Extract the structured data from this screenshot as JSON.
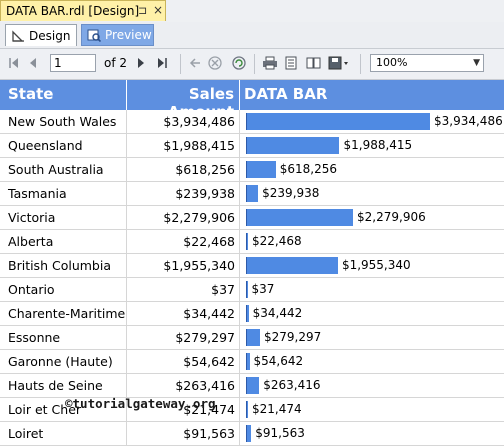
{
  "title_tab": {
    "label": "DATA BAR.rdl [Design]",
    "pin": "⊐",
    "close": "×"
  },
  "subtabs": [
    {
      "label": "Design"
    },
    {
      "label": "Preview"
    }
  ],
  "toolbar": {
    "page_value": "1",
    "page_of": "of 2",
    "zoom": "100%"
  },
  "table": {
    "headers": {
      "state": "State",
      "amount": "Sales Amount",
      "bar": "DATA BAR"
    },
    "rows": [
      {
        "state": "New South Wales",
        "amount": "$3,934,486",
        "value": 3934486
      },
      {
        "state": "Queensland",
        "amount": "$1,988,415",
        "value": 1988415
      },
      {
        "state": "South Australia",
        "amount": "$618,256",
        "value": 618256
      },
      {
        "state": "Tasmania",
        "amount": "$239,938",
        "value": 239938
      },
      {
        "state": "Victoria",
        "amount": "$2,279,906",
        "value": 2279906
      },
      {
        "state": "Alberta",
        "amount": "$22,468",
        "value": 22468
      },
      {
        "state": "British Columbia",
        "amount": "$1,955,340",
        "value": 1955340
      },
      {
        "state": "Ontario",
        "amount": "$37",
        "value": 37
      },
      {
        "state": "Charente-Maritime",
        "amount": "$34,442",
        "value": 34442
      },
      {
        "state": "Essonne",
        "amount": "$279,297",
        "value": 279297
      },
      {
        "state": "Garonne (Haute)",
        "amount": "$54,642",
        "value": 54642
      },
      {
        "state": "Hauts de Seine",
        "amount": "$263,416",
        "value": 263416
      },
      {
        "state": "Loir et Cher",
        "amount": "$21,474",
        "value": 21474
      },
      {
        "state": "Loiret",
        "amount": "$91,563",
        "value": 91563
      }
    ]
  },
  "watermark": "©tutorialgateway.org",
  "colors": {
    "header": "#5d8fe0",
    "bar": "#4f8ae3",
    "tab": "#fff1a8"
  }
}
